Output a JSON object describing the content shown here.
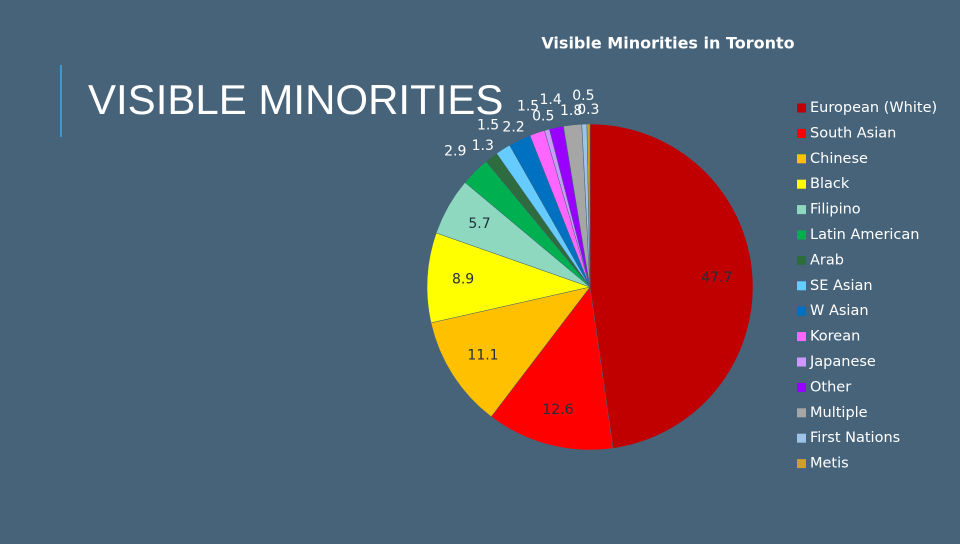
{
  "slide_title": "VISIBLE MINORITIES",
  "chart_data": {
    "type": "pie",
    "title": "Visible Minorities in Toronto",
    "categories": [
      "European (White)",
      "South Asian",
      "Chinese",
      "Black",
      "Filipino",
      "Latin American",
      "Arab",
      "SE Asian",
      "W Asian",
      "Korean",
      "Japanese",
      "Other",
      "Multiple",
      "First Nations",
      "Metis"
    ],
    "values": [
      47.7,
      12.6,
      11.1,
      8.9,
      5.7,
      2.9,
      1.3,
      1.5,
      2.2,
      1.5,
      0.5,
      1.4,
      1.8,
      0.5,
      0.3
    ],
    "colors": [
      "#c00000",
      "#ff0000",
      "#ffc000",
      "#ffff00",
      "#8fd8c0",
      "#00b050",
      "#2e6b3e",
      "#66ccff",
      "#0070c0",
      "#ff66ff",
      "#cc99ff",
      "#9900ff",
      "#a6a6a6",
      "#9dc3e6",
      "#c9a227"
    ],
    "legend": "right"
  }
}
